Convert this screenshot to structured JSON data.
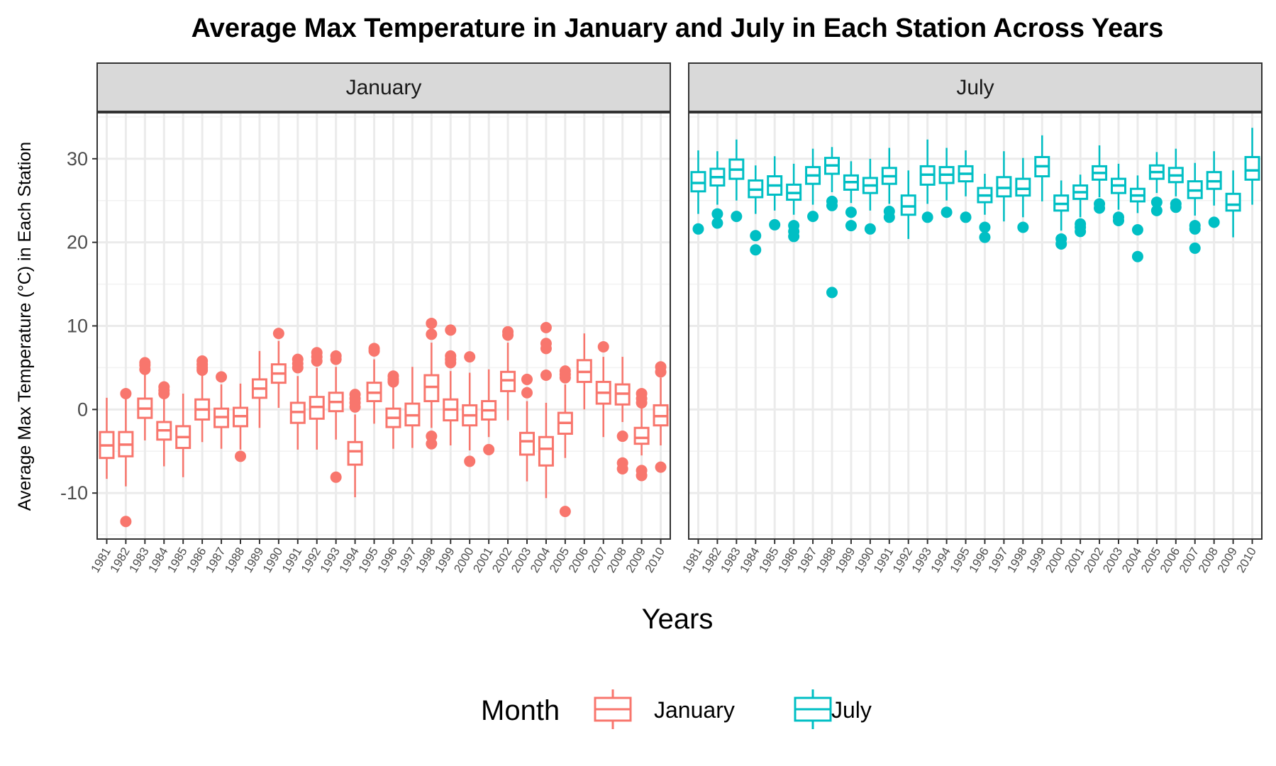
{
  "chart_data": {
    "type": "boxplot",
    "title": "Average Max Temperature in January and July in Each Station Across Years",
    "xlabel": "Years",
    "ylabel": "Average Max Temperature (°C) in Each Station",
    "ylim": [
      -15.5,
      35.5
    ],
    "yticks": [
      -10,
      0,
      10,
      20,
      30
    ],
    "grid": true,
    "legend": {
      "title": "Month",
      "position": "bottom",
      "entries": [
        "January",
        "July"
      ]
    },
    "colors": {
      "January": "#F8766D",
      "July": "#00BFC4"
    },
    "categories": [
      "1981",
      "1982",
      "1983",
      "1984",
      "1985",
      "1986",
      "1987",
      "1988",
      "1989",
      "1990",
      "1991",
      "1992",
      "1993",
      "1994",
      "1995",
      "1996",
      "1997",
      "1998",
      "1999",
      "2000",
      "2001",
      "2002",
      "2003",
      "2004",
      "2005",
      "2006",
      "2007",
      "2008",
      "2009",
      "2010"
    ],
    "panels": [
      {
        "name": "January",
        "boxes": [
          {
            "lw": -8.3,
            "q1": -5.8,
            "med": -4.3,
            "q3": -2.7,
            "uw": 1.4,
            "out": []
          },
          {
            "lw": -9.2,
            "q1": -5.6,
            "med": -4.2,
            "q3": -2.7,
            "uw": 1.4,
            "out": [
              1.9,
              -13.4
            ]
          },
          {
            "lw": -3.7,
            "q1": -1.0,
            "med": 0.1,
            "q3": 1.3,
            "uw": 4.5,
            "out": [
              5.6,
              5.3,
              4.8
            ]
          },
          {
            "lw": -6.8,
            "q1": -3.6,
            "med": -2.5,
            "q3": -1.5,
            "uw": 1.5,
            "out": [
              2.7,
              2.3,
              1.9
            ]
          },
          {
            "lw": -8.1,
            "q1": -4.6,
            "med": -3.3,
            "q3": -2.0,
            "uw": 1.9,
            "out": []
          },
          {
            "lw": -3.9,
            "q1": -1.2,
            "med": 0.0,
            "q3": 1.2,
            "uw": 4.4,
            "out": [
              5.8,
              5.4,
              5.0,
              4.7
            ]
          },
          {
            "lw": -4.7,
            "q1": -2.1,
            "med": -0.9,
            "q3": 0.1,
            "uw": 3.0,
            "out": [
              3.9
            ]
          },
          {
            "lw": -4.8,
            "q1": -2.0,
            "med": -0.8,
            "q3": 0.2,
            "uw": 3.1,
            "out": [
              -5.6
            ]
          },
          {
            "lw": -2.2,
            "q1": 1.4,
            "med": 2.5,
            "q3": 3.6,
            "uw": 7.0,
            "out": []
          },
          {
            "lw": 0.2,
            "q1": 3.2,
            "med": 4.3,
            "q3": 5.4,
            "uw": 8.2,
            "out": [
              9.1
            ]
          },
          {
            "lw": -4.8,
            "q1": -1.6,
            "med": -0.3,
            "q3": 0.8,
            "uw": 4.0,
            "out": [
              6.0,
              5.5,
              5.0
            ]
          },
          {
            "lw": -4.8,
            "q1": -1.1,
            "med": 0.3,
            "q3": 1.5,
            "uw": 5.0,
            "out": [
              6.8,
              6.3,
              5.8
            ]
          },
          {
            "lw": -3.6,
            "q1": -0.2,
            "med": 0.9,
            "q3": 2.0,
            "uw": 5.1,
            "out": [
              6.4,
              6.0,
              -8.1
            ]
          },
          {
            "lw": -10.5,
            "q1": -6.6,
            "med": -5.0,
            "q3": -3.9,
            "uw": -0.6,
            "out": [
              1.8,
              1.3,
              0.8,
              0.3
            ]
          },
          {
            "lw": -1.7,
            "q1": 1.0,
            "med": 2.0,
            "q3": 3.2,
            "uw": 6.0,
            "out": [
              7.3,
              7.0
            ]
          },
          {
            "lw": -4.7,
            "q1": -2.1,
            "med": -1.0,
            "q3": 0.1,
            "uw": 3.0,
            "out": [
              4.0,
              3.6,
              3.3
            ]
          },
          {
            "lw": -4.6,
            "q1": -1.9,
            "med": -0.7,
            "q3": 0.7,
            "uw": 5.1,
            "out": []
          },
          {
            "lw": -2.2,
            "q1": 1.0,
            "med": 2.7,
            "q3": 4.1,
            "uw": 8.0,
            "out": [
              10.3,
              9.0,
              -3.2,
              -4.1
            ]
          },
          {
            "lw": -4.3,
            "q1": -1.3,
            "med": 0.0,
            "q3": 1.2,
            "uw": 4.6,
            "out": [
              9.5,
              6.4,
              6.0,
              5.6
            ]
          },
          {
            "lw": -4.9,
            "q1": -1.9,
            "med": -0.7,
            "q3": 0.5,
            "uw": 4.4,
            "out": [
              6.3,
              -6.2
            ]
          },
          {
            "lw": -3.3,
            "q1": -1.2,
            "med": -0.1,
            "q3": 1.0,
            "uw": 4.8,
            "out": [
              -4.8
            ]
          },
          {
            "lw": -1.3,
            "q1": 2.2,
            "med": 3.5,
            "q3": 4.5,
            "uw": 8.0,
            "out": [
              9.3,
              8.9
            ]
          },
          {
            "lw": -8.6,
            "q1": -5.4,
            "med": -3.8,
            "q3": -2.8,
            "uw": 1.0,
            "out": [
              3.6,
              2.0
            ]
          },
          {
            "lw": -10.6,
            "q1": -6.7,
            "med": -4.7,
            "q3": -3.3,
            "uw": 0.8,
            "out": [
              9.8,
              7.9,
              7.3,
              4.1
            ]
          },
          {
            "lw": -5.8,
            "q1": -2.9,
            "med": -1.6,
            "q3": -0.4,
            "uw": 3.0,
            "out": [
              4.6,
              4.2,
              3.8,
              -12.2
            ]
          },
          {
            "lw": 0.0,
            "q1": 3.3,
            "med": 4.5,
            "q3": 5.9,
            "uw": 9.1,
            "out": []
          },
          {
            "lw": -3.3,
            "q1": 0.7,
            "med": 2.0,
            "q3": 3.3,
            "uw": 6.3,
            "out": [
              7.5
            ]
          },
          {
            "lw": -1.5,
            "q1": 0.6,
            "med": 1.9,
            "q3": 3.0,
            "uw": 6.3,
            "out": [
              -3.2,
              -6.4,
              -7.1
            ]
          },
          {
            "lw": -5.5,
            "q1": -4.1,
            "med": -3.4,
            "q3": -2.2,
            "uw": 0.3,
            "out": [
              1.9,
              1.3,
              0.8,
              -7.3,
              -7.9
            ]
          },
          {
            "lw": -4.3,
            "q1": -1.9,
            "med": -0.8,
            "q3": 0.5,
            "uw": 3.8,
            "out": [
              5.1,
              4.5,
              -6.9
            ]
          }
        ]
      },
      {
        "name": "July",
        "boxes": [
          {
            "lw": 23.4,
            "q1": 26.1,
            "med": 27.1,
            "q3": 28.4,
            "uw": 31.0,
            "out": [
              21.6
            ]
          },
          {
            "lw": 24.5,
            "q1": 26.8,
            "med": 27.8,
            "q3": 28.8,
            "uw": 30.9,
            "out": [
              23.4,
              22.3
            ]
          },
          {
            "lw": 25.0,
            "q1": 27.6,
            "med": 28.7,
            "q3": 29.9,
            "uw": 32.3,
            "out": [
              23.1
            ]
          },
          {
            "lw": 23.4,
            "q1": 25.4,
            "med": 26.3,
            "q3": 27.4,
            "uw": 29.2,
            "out": [
              20.8,
              19.1
            ]
          },
          {
            "lw": 23.8,
            "q1": 25.7,
            "med": 26.8,
            "q3": 27.9,
            "uw": 30.3,
            "out": [
              22.1
            ]
          },
          {
            "lw": 23.3,
            "q1": 25.1,
            "med": 25.9,
            "q3": 26.9,
            "uw": 29.4,
            "out": [
              22.0,
              21.3,
              20.7
            ]
          },
          {
            "lw": 24.5,
            "q1": 27.0,
            "med": 28.0,
            "q3": 29.0,
            "uw": 31.2,
            "out": [
              23.1
            ]
          },
          {
            "lw": 26.0,
            "q1": 28.2,
            "med": 29.2,
            "q3": 30.1,
            "uw": 31.4,
            "out": [
              24.9,
              24.4,
              14.0
            ]
          },
          {
            "lw": 24.7,
            "q1": 26.3,
            "med": 27.2,
            "q3": 28.0,
            "uw": 29.7,
            "out": [
              23.6,
              22.0
            ]
          },
          {
            "lw": 23.8,
            "q1": 25.9,
            "med": 26.8,
            "q3": 27.7,
            "uw": 30.0,
            "out": [
              21.6
            ]
          },
          {
            "lw": 24.6,
            "q1": 27.0,
            "med": 27.9,
            "q3": 28.9,
            "uw": 31.3,
            "out": [
              23.7,
              23.0
            ]
          },
          {
            "lw": 20.4,
            "q1": 23.3,
            "med": 24.3,
            "q3": 25.6,
            "uw": 28.6,
            "out": []
          },
          {
            "lw": 24.6,
            "q1": 26.9,
            "med": 28.1,
            "q3": 29.1,
            "uw": 32.3,
            "out": [
              23.0
            ]
          },
          {
            "lw": 25.0,
            "q1": 27.1,
            "med": 28.1,
            "q3": 29.0,
            "uw": 31.3,
            "out": [
              23.6
            ]
          },
          {
            "lw": 25.5,
            "q1": 27.3,
            "med": 28.2,
            "q3": 29.1,
            "uw": 31.0,
            "out": [
              23.0
            ]
          },
          {
            "lw": 23.3,
            "q1": 24.8,
            "med": 25.6,
            "q3": 26.5,
            "uw": 28.2,
            "out": [
              21.8,
              20.6
            ]
          },
          {
            "lw": 22.5,
            "q1": 25.5,
            "med": 26.5,
            "q3": 27.8,
            "uw": 30.9,
            "out": []
          },
          {
            "lw": 23.0,
            "q1": 25.6,
            "med": 26.4,
            "q3": 27.6,
            "uw": 30.1,
            "out": [
              21.8
            ]
          },
          {
            "lw": 24.9,
            "q1": 27.9,
            "med": 29.1,
            "q3": 30.2,
            "uw": 32.8,
            "out": []
          },
          {
            "lw": 21.4,
            "q1": 23.8,
            "med": 24.6,
            "q3": 25.6,
            "uw": 27.4,
            "out": [
              20.4,
              19.8
            ]
          },
          {
            "lw": 23.0,
            "q1": 25.2,
            "med": 26.0,
            "q3": 26.8,
            "uw": 28.1,
            "out": [
              22.2,
              21.8,
              21.3
            ]
          },
          {
            "lw": 25.4,
            "q1": 27.5,
            "med": 28.3,
            "q3": 29.1,
            "uw": 31.6,
            "out": [
              24.6,
              24.1
            ]
          },
          {
            "lw": 23.9,
            "q1": 25.9,
            "med": 26.8,
            "q3": 27.6,
            "uw": 29.4,
            "out": [
              23.0,
              22.6
            ]
          },
          {
            "lw": 23.5,
            "q1": 24.9,
            "med": 25.6,
            "q3": 26.4,
            "uw": 28.0,
            "out": [
              21.5,
              18.3
            ]
          },
          {
            "lw": 25.9,
            "q1": 27.6,
            "med": 28.4,
            "q3": 29.2,
            "uw": 30.8,
            "out": [
              24.8,
              23.8
            ]
          },
          {
            "lw": 25.5,
            "q1": 27.2,
            "med": 28.0,
            "q3": 28.9,
            "uw": 31.2,
            "out": [
              24.6,
              24.2
            ]
          },
          {
            "lw": 23.2,
            "q1": 25.3,
            "med": 26.2,
            "q3": 27.3,
            "uw": 29.5,
            "out": [
              22.0,
              21.6,
              19.3
            ]
          },
          {
            "lw": 24.4,
            "q1": 26.4,
            "med": 27.3,
            "q3": 28.4,
            "uw": 30.9,
            "out": [
              22.4
            ]
          },
          {
            "lw": 20.6,
            "q1": 23.8,
            "med": 24.5,
            "q3": 25.8,
            "uw": 28.6,
            "out": []
          },
          {
            "lw": 24.5,
            "q1": 27.5,
            "med": 28.6,
            "q3": 30.2,
            "uw": 33.7,
            "out": []
          }
        ]
      }
    ]
  }
}
